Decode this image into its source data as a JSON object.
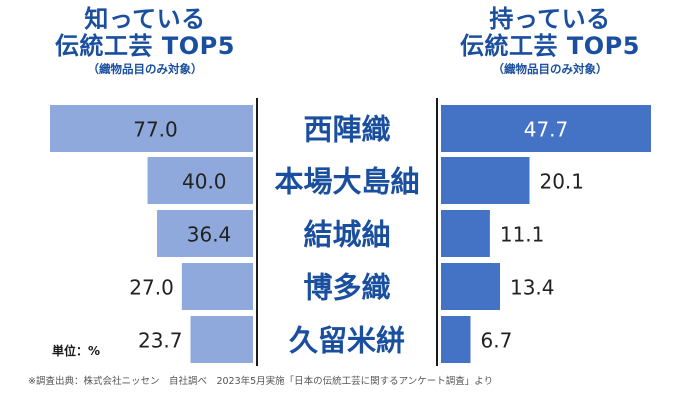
{
  "titles": {
    "left": {
      "line1": "知っている",
      "line2": "伝統工芸 TOP5",
      "sub": "（織物品目のみ対象）"
    },
    "right": {
      "line1": "持っている",
      "line2": "伝統工芸 TOP5",
      "sub": "（織物品目のみ対象）"
    }
  },
  "unit_label": "単位：%",
  "footnote": "※調査出典：株式会社ニッセン　自社調べ　2023年5月実施「日本の伝統工芸に関するアンケート調査」より",
  "colors": {
    "left_bar": "#8fa9dc",
    "right_bar": "#4472c4",
    "label_text": "#1a4fa0",
    "divider": "#1a1a1a",
    "value_text": "#222222",
    "value_text_inside_right": "#ffffff"
  },
  "chart_data": {
    "type": "bar",
    "categories": [
      "西陣織",
      "本場大島紬",
      "結城紬",
      "博多織",
      "久留米絣"
    ],
    "series": [
      {
        "name": "知っている",
        "values": [
          77.0,
          40.0,
          36.4,
          27.0,
          23.7
        ]
      },
      {
        "name": "持っている",
        "values": [
          47.7,
          20.1,
          11.1,
          13.4,
          6.7
        ]
      }
    ],
    "value_labels": {
      "left": [
        "77.0",
        "40.0",
        "36.4",
        "27.0",
        "23.7"
      ],
      "right": [
        "47.7",
        "20.1",
        "11.1",
        "13.4",
        "6.7"
      ]
    },
    "ylabel": "単位：%"
  }
}
